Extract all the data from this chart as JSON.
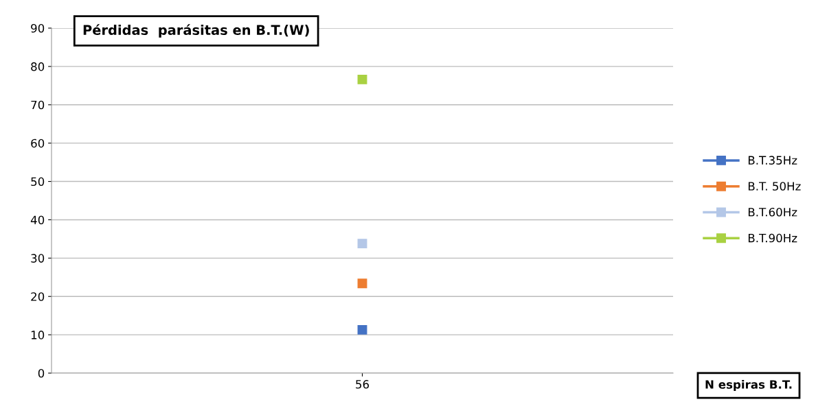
{
  "chart_data": {
    "type": "line",
    "title": "Pérdidas  parásitas en B.T.(W)",
    "xlabel": "N espiras B.T.",
    "categories": [
      "56"
    ],
    "series": [
      {
        "name": "B.T.35Hz",
        "color": "#4472c4",
        "values": [
          11.3
        ]
      },
      {
        "name": "B.T. 50Hz",
        "color": "#ed7d31",
        "values": [
          23.4
        ]
      },
      {
        "name": "B.T.60Hz",
        "color": "#b4c7e7",
        "values": [
          33.8
        ]
      },
      {
        "name": "B.T.90Hz",
        "color": "#a9d142",
        "values": [
          76.6
        ]
      }
    ],
    "ylim": [
      0,
      90
    ],
    "yticks": [
      0,
      10,
      20,
      30,
      40,
      50,
      60,
      70,
      80,
      90
    ],
    "grid": "y",
    "legend": "right",
    "marker": "square",
    "line_style": "solid"
  }
}
